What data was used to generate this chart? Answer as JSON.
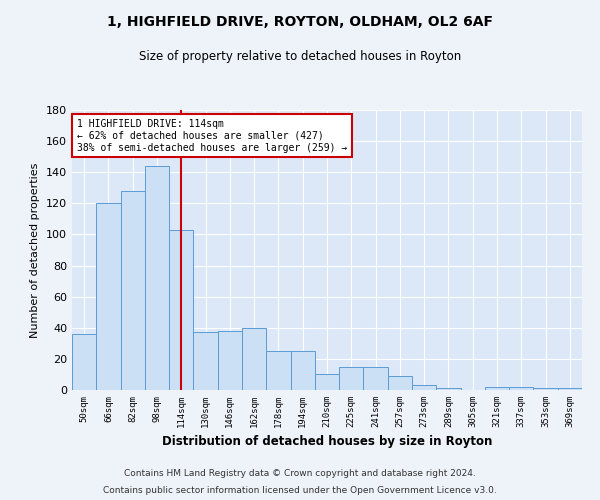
{
  "title": "1, HIGHFIELD DRIVE, ROYTON, OLDHAM, OL2 6AF",
  "subtitle": "Size of property relative to detached houses in Royton",
  "xlabel": "Distribution of detached houses by size in Royton",
  "ylabel": "Number of detached properties",
  "categories": [
    "50sqm",
    "66sqm",
    "82sqm",
    "98sqm",
    "114sqm",
    "130sqm",
    "146sqm",
    "162sqm",
    "178sqm",
    "194sqm",
    "210sqm",
    "225sqm",
    "241sqm",
    "257sqm",
    "273sqm",
    "289sqm",
    "305sqm",
    "321sqm",
    "337sqm",
    "353sqm",
    "369sqm"
  ],
  "values": [
    36,
    120,
    128,
    144,
    103,
    37,
    38,
    40,
    25,
    25,
    10,
    15,
    15,
    9,
    3,
    1,
    0,
    2,
    2,
    1,
    1
  ],
  "bar_color": "#cce0f5",
  "bar_edge_color": "#5b9bd5",
  "marker_index": 4,
  "marker_color": "#cc0000",
  "annotation_lines": [
    "1 HIGHFIELD DRIVE: 114sqm",
    "← 62% of detached houses are smaller (427)",
    "38% of semi-detached houses are larger (259) →"
  ],
  "annotation_box_color": "#cc0000",
  "ylim": [
    0,
    180
  ],
  "yticks": [
    0,
    20,
    40,
    60,
    80,
    100,
    120,
    140,
    160,
    180
  ],
  "fig_bg_color": "#eef2f9",
  "plot_bg_color": "#dce8f8",
  "grid_color": "#ffffff",
  "footer_line1": "Contains HM Land Registry data © Crown copyright and database right 2024.",
  "footer_line2": "Contains public sector information licensed under the Open Government Licence v3.0."
}
